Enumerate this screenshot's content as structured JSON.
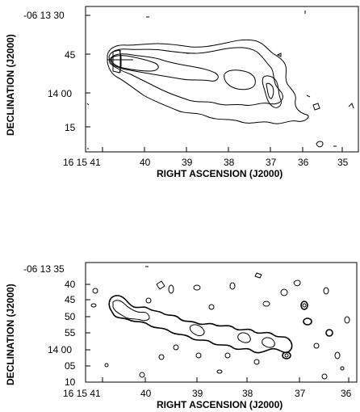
{
  "chart_data": [
    {
      "type": "contour",
      "xlabel": "RIGHT ASCENSION (J2000)",
      "ylabel": "DECLINATION (J2000)",
      "x_tick_labels": [
        "16 15 41",
        "40",
        "39",
        "38",
        "37",
        "36",
        "35"
      ],
      "y_tick_labels": [
        "-06 13 30",
        "45",
        "14 00",
        "15"
      ],
      "x_range": [
        "16 15 41.2",
        "16 15 34.6"
      ],
      "y_range": [
        "-06 13 26",
        "-06 14 23"
      ],
      "grid": false
    },
    {
      "type": "contour",
      "xlabel": "RIGHT ASCENSION (J2000)",
      "ylabel": "DECLINATION (J2000)",
      "x_tick_labels": [
        "16 15 41",
        "40",
        "39",
        "38",
        "37",
        "36"
      ],
      "y_tick_labels": [
        "-06 13 35",
        "40",
        "45",
        "50",
        "55",
        "14 00",
        "05",
        "10"
      ],
      "x_range": [
        "16 15 41.2",
        "16 15 35.9"
      ],
      "y_range": [
        "-06 13 35",
        "-06 14 10"
      ],
      "grid": false
    }
  ]
}
